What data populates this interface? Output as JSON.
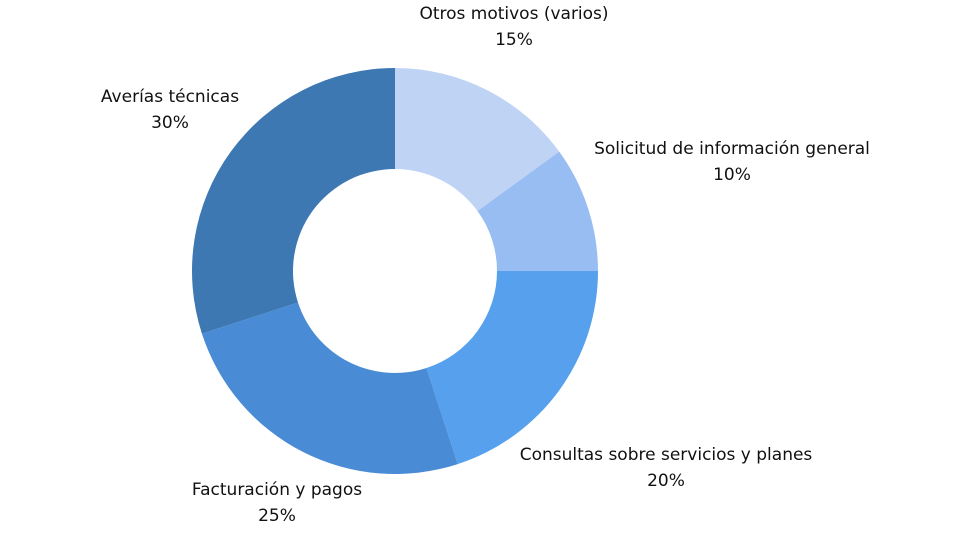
{
  "chart_data": {
    "type": "donut",
    "categories": [
      "Otros motivos (varios)",
      "Solicitud de información general",
      "Consultas sobre servicios y planes",
      "Facturación y pagos",
      "Averías técnicas"
    ],
    "values": [
      15,
      10,
      20,
      25,
      30
    ],
    "value_labels": [
      "15%",
      "10%",
      "20%",
      "25%",
      "30%"
    ],
    "colors": [
      "#bfd3f5",
      "#98bdf2",
      "#57a0ee",
      "#4a8bd6",
      "#3d78b3"
    ]
  }
}
